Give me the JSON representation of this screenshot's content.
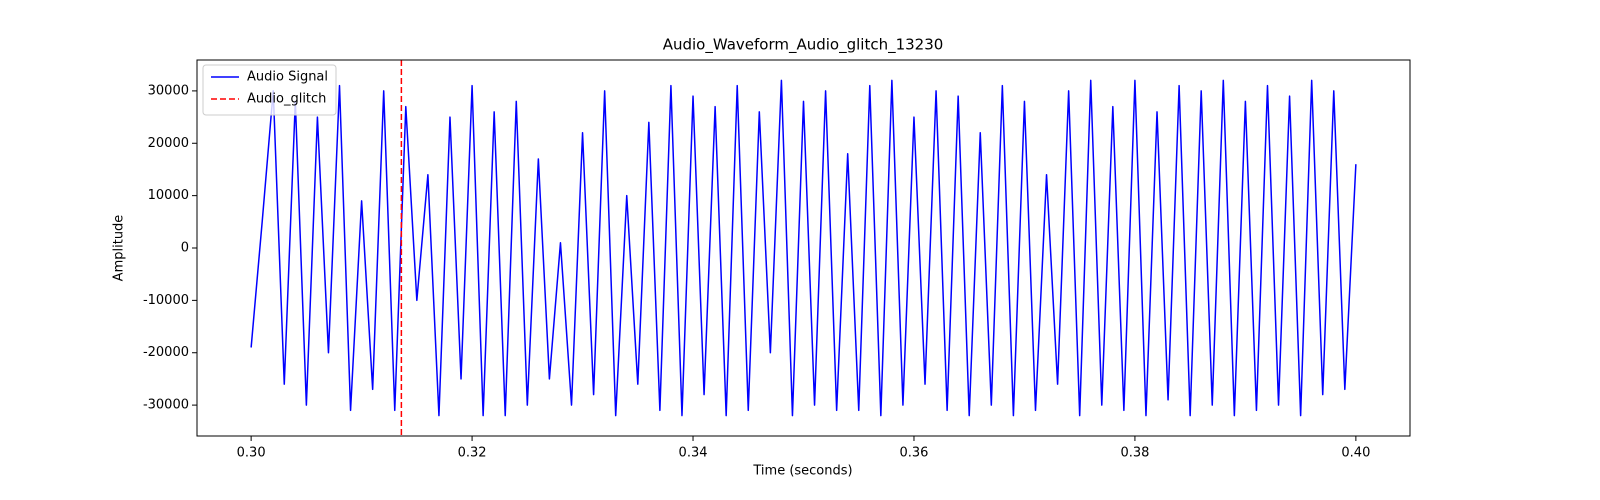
{
  "chart_data": {
    "type": "line",
    "title": "Audio_Waveform_Audio_glitch_13230",
    "x_label": "Time (seconds)",
    "y_label": "Amplitude",
    "x": [
      0.3,
      0.301,
      0.302,
      0.303,
      0.304,
      0.305,
      0.306,
      0.307,
      0.308,
      0.309,
      0.31,
      0.311,
      0.312,
      0.313,
      0.314,
      0.315,
      0.316,
      0.317,
      0.318,
      0.319,
      0.32,
      0.321,
      0.322,
      0.323,
      0.324,
      0.325,
      0.326,
      0.327,
      0.328,
      0.329,
      0.33,
      0.331,
      0.332,
      0.333,
      0.334,
      0.335,
      0.336,
      0.337,
      0.338,
      0.339,
      0.34,
      0.341,
      0.342,
      0.343,
      0.344,
      0.345,
      0.346,
      0.347,
      0.348,
      0.349,
      0.35,
      0.351,
      0.352,
      0.353,
      0.354,
      0.355,
      0.356,
      0.357,
      0.358,
      0.359,
      0.36,
      0.361,
      0.362,
      0.363,
      0.364,
      0.365,
      0.366,
      0.367,
      0.368,
      0.369,
      0.37,
      0.371,
      0.372,
      0.373,
      0.374,
      0.375,
      0.376,
      0.377,
      0.378,
      0.379,
      0.38,
      0.381,
      0.382,
      0.383,
      0.384,
      0.385,
      0.386,
      0.387,
      0.388,
      0.389,
      0.39,
      0.391,
      0.392,
      0.393,
      0.394,
      0.395,
      0.396,
      0.397,
      0.398,
      0.399,
      0.4
    ],
    "series": [
      {
        "name": "Audio Signal",
        "color": "#0000ff",
        "values": [
          -19000,
          5000,
          30000,
          -26000,
          28000,
          -30000,
          25000,
          -20000,
          31000,
          -31000,
          9000,
          -27000,
          30000,
          -31000,
          27000,
          -10000,
          14000,
          -32000,
          25000,
          -25000,
          31000,
          -32000,
          26000,
          -32000,
          28000,
          -30000,
          17000,
          -25000,
          1000,
          -30000,
          22000,
          -28000,
          30000,
          -32000,
          10000,
          -26000,
          24000,
          -31000,
          31000,
          -32000,
          29000,
          -28000,
          27000,
          -32000,
          31000,
          -31000,
          26000,
          -20000,
          32000,
          -32000,
          28000,
          -30000,
          30000,
          -31000,
          18000,
          -31000,
          31000,
          -32000,
          32000,
          -30000,
          25000,
          -26000,
          30000,
          -31000,
          29000,
          -32000,
          22000,
          -30000,
          31000,
          -32000,
          28000,
          -31000,
          14000,
          -26000,
          30000,
          -32000,
          32000,
          -30000,
          27000,
          -31000,
          32000,
          -32000,
          26000,
          -29000,
          31000,
          -32000,
          30000,
          -30000,
          32000,
          -32000,
          28000,
          -31000,
          31000,
          -30000,
          29000,
          -32000,
          32000,
          -28000,
          30000,
          -27000,
          16000
        ]
      }
    ],
    "markers": [
      {
        "name": "Audio_glitch",
        "color": "#ff0000",
        "x": 0.3136
      }
    ],
    "xlim": [
      0.2951,
      0.4049
    ],
    "ylim": [
      -35900,
      35900
    ],
    "xticks": [
      {
        "value": 0.3,
        "label": "0.30"
      },
      0.32,
      0.34,
      0.36,
      0.38,
      {
        "value": 0.4,
        "label": "0.40"
      }
    ],
    "yticks": [
      -30000,
      -20000,
      -10000,
      0,
      10000,
      20000,
      30000
    ],
    "legend": "upper left"
  }
}
